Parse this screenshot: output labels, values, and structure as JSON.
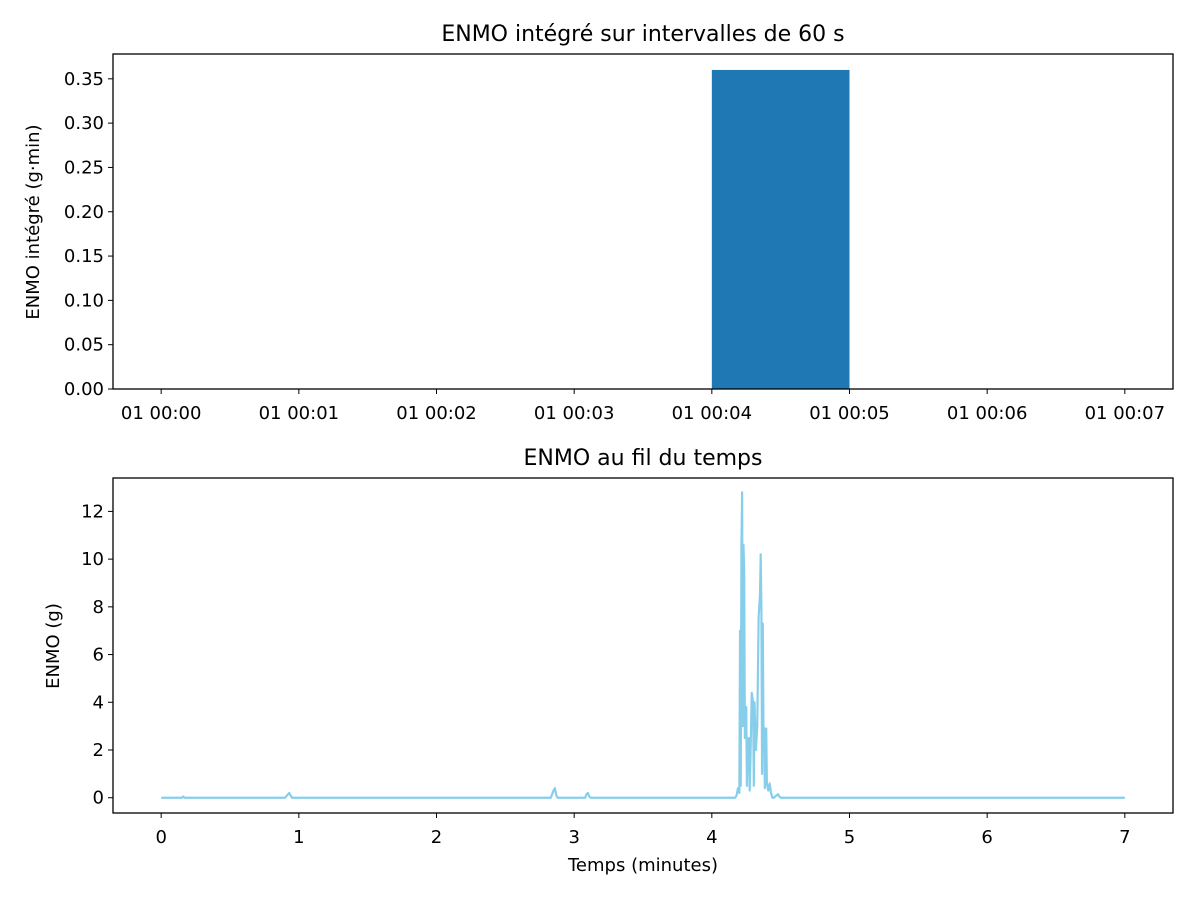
{
  "colors": {
    "bar": "#1f77b4",
    "line": "#87ceeb",
    "axes": "#000000",
    "background": "#ffffff"
  },
  "chart_data": [
    {
      "type": "bar",
      "title": "ENMO intégré sur intervalles de 60 s",
      "xlabel": "",
      "ylabel": "ENMO intégré (g·min)",
      "x_ticks": [
        "01 00:00",
        "01 00:01",
        "01 00:02",
        "01 00:03",
        "01 00:04",
        "01 00:05",
        "01 00:06",
        "01 00:07"
      ],
      "y_ticks": [
        "0.00",
        "0.05",
        "0.10",
        "0.15",
        "0.20",
        "0.25",
        "0.30",
        "0.35"
      ],
      "xlim_minutes": [
        -0.35,
        7.35
      ],
      "ylim": [
        0,
        0.378
      ],
      "bars": [
        {
          "start": "01 00:00",
          "end": "01 00:01",
          "value": 0.0
        },
        {
          "start": "01 00:01",
          "end": "01 00:02",
          "value": 0.0
        },
        {
          "start": "01 00:02",
          "end": "01 00:03",
          "value": 0.0
        },
        {
          "start": "01 00:03",
          "end": "01 00:04",
          "value": 0.0
        },
        {
          "start": "01 00:04",
          "end": "01 00:05",
          "value": 0.36
        },
        {
          "start": "01 00:05",
          "end": "01 00:06",
          "value": 0.0
        },
        {
          "start": "01 00:06",
          "end": "01 00:07",
          "value": 0.0
        }
      ],
      "grid": false,
      "legend": "none"
    },
    {
      "type": "line",
      "title": "ENMO au fil du temps",
      "xlabel": "Temps (minutes)",
      "ylabel": "ENMO (g)",
      "x_ticks": [
        "0",
        "1",
        "2",
        "3",
        "4",
        "5",
        "6",
        "7"
      ],
      "y_ticks": [
        "0",
        "2",
        "4",
        "6",
        "8",
        "10",
        "12"
      ],
      "xlim": [
        -0.35,
        7.35
      ],
      "ylim": [
        -0.64,
        13.4
      ],
      "series": [
        {
          "x": [
            0,
            0.15,
            0.16,
            0.17,
            0.9,
            0.93,
            0.94,
            0.95,
            1.0,
            2.83,
            2.85,
            2.86,
            2.87,
            2.88,
            3.0,
            3.08,
            3.09,
            3.1,
            3.11,
            3.12,
            4.17,
            4.18,
            4.19,
            4.2,
            4.205,
            4.21,
            4.215,
            4.22,
            4.225,
            4.23,
            4.235,
            4.24,
            4.245,
            4.25,
            4.255,
            4.26,
            4.265,
            4.27,
            4.275,
            4.28,
            4.29,
            4.3,
            4.305,
            4.31,
            4.32,
            4.33,
            4.34,
            4.35,
            4.355,
            4.36,
            4.365,
            4.37,
            4.375,
            4.38,
            4.385,
            4.39,
            4.395,
            4.4,
            4.41,
            4.42,
            4.43,
            4.44,
            4.45,
            4.46,
            4.48,
            4.49,
            4.5,
            4.6,
            7.0
          ],
          "y": [
            0.0,
            0.0,
            0.05,
            0.0,
            0.0,
            0.2,
            0.1,
            0.0,
            0.0,
            0.0,
            0.3,
            0.4,
            0.1,
            0.0,
            0.0,
            0.0,
            0.15,
            0.2,
            0.05,
            0.0,
            0.0,
            0.1,
            0.4,
            0.2,
            7.0,
            0.5,
            10.5,
            12.8,
            3.0,
            10.6,
            9.5,
            2.5,
            3.8,
            3.8,
            0.5,
            2.5,
            1.0,
            2.5,
            0.3,
            1.5,
            4.4,
            4.0,
            0.5,
            4.0,
            2.0,
            3.0,
            7.6,
            8.5,
            10.2,
            8.0,
            1.0,
            7.3,
            3.0,
            2.9,
            0.4,
            1.5,
            2.9,
            0.6,
            0.3,
            0.6,
            0.2,
            0.0,
            0.0,
            0.05,
            0.15,
            0.05,
            0.0,
            0.0,
            0.0
          ]
        }
      ],
      "grid": false,
      "legend": "none"
    }
  ]
}
